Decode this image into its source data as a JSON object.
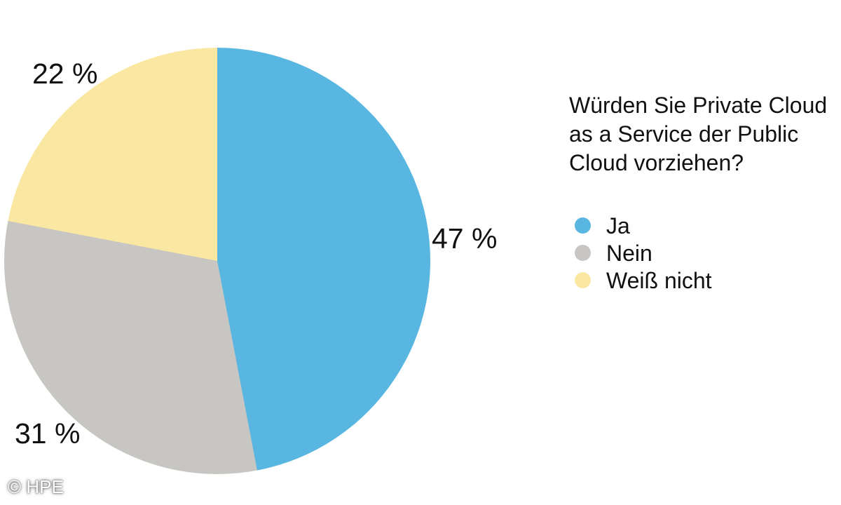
{
  "chart_data": {
    "type": "pie",
    "title": "Würden Sie Private Cloud as a Service der Public Cloud vorziehen?",
    "title_lines": [
      "Würden Sie Private Cloud",
      "as a Service der Public",
      "Cloud vorziehen?"
    ],
    "categories": [
      "Ja",
      "Nein",
      "Weiß nicht"
    ],
    "values": [
      47,
      31,
      22
    ],
    "unit": "%",
    "slice_labels": [
      "47 %",
      "31 %",
      "22 %"
    ],
    "colors": [
      "#58B6E0",
      "#C7C6C2",
      "#FAE7A1"
    ],
    "start_angle_deg": 0,
    "direction": "clockwise",
    "legend_position": "right",
    "grid": false
  },
  "watermark": "© HPE"
}
